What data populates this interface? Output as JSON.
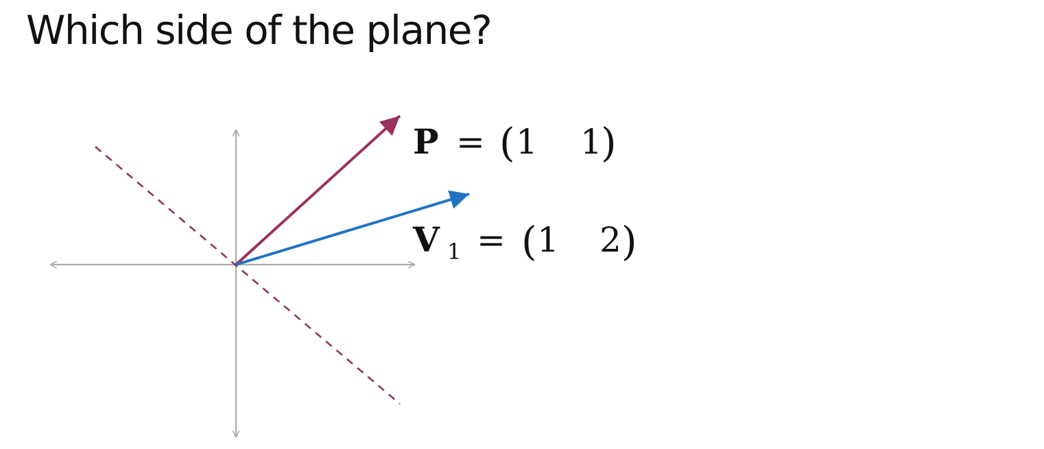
{
  "title": "Which side of the plane?",
  "colors": {
    "axis": "#aaaaaa",
    "plane": "#8f3558",
    "vector_p": "#99325f",
    "vector_v1": "#2372c2",
    "text": "#111111"
  },
  "vectors": {
    "p": {
      "symbol": "P",
      "equals": "=",
      "components": [
        "1",
        "1"
      ]
    },
    "v1": {
      "symbol": "V",
      "subscript": "1",
      "equals": "=",
      "components": [
        "1",
        "2"
      ]
    }
  }
}
